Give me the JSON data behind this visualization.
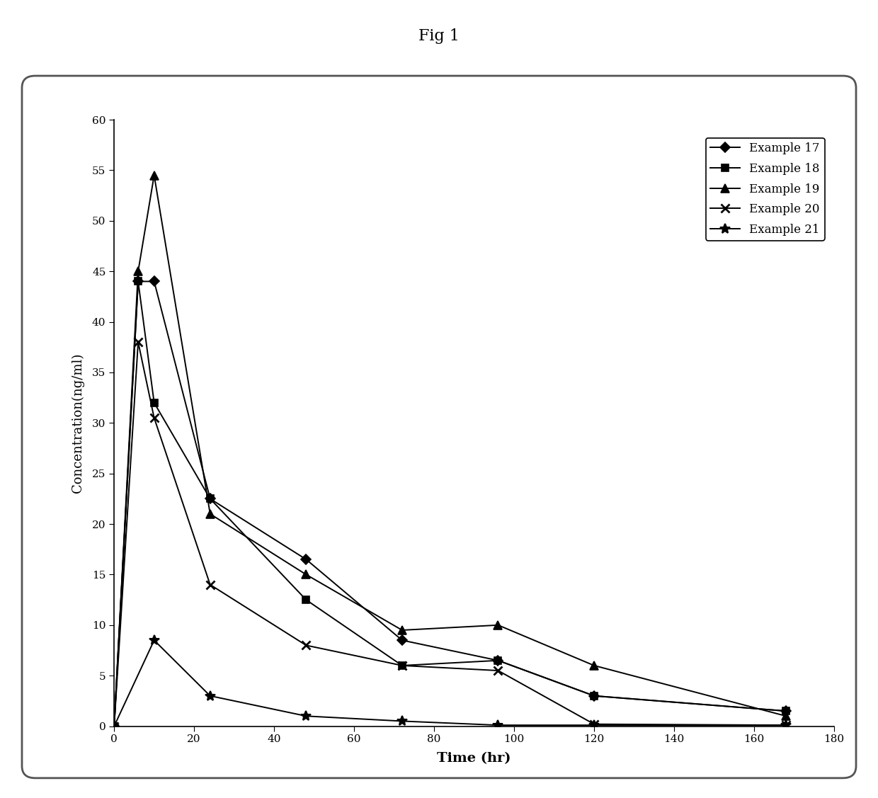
{
  "title": "Fig 1",
  "xlabel": "Time (hr)",
  "ylabel": "Concentration(ng/ml)",
  "xlim": [
    0,
    180
  ],
  "ylim": [
    0,
    60
  ],
  "xticks": [
    0,
    20,
    40,
    60,
    80,
    100,
    120,
    140,
    160,
    180
  ],
  "yticks": [
    0,
    5,
    10,
    15,
    20,
    25,
    30,
    35,
    40,
    45,
    50,
    55,
    60
  ],
  "series": [
    {
      "label": "Example 17",
      "marker": "D",
      "color": "#000000",
      "x": [
        0,
        6,
        10,
        24,
        48,
        72,
        96,
        120,
        168
      ],
      "y": [
        0,
        44,
        44,
        22.5,
        16.5,
        8.5,
        6.5,
        3.0,
        1.5
      ]
    },
    {
      "label": "Example 18",
      "marker": "s",
      "color": "#000000",
      "x": [
        0,
        6,
        10,
        24,
        48,
        72,
        96,
        120,
        168
      ],
      "y": [
        0,
        44,
        32,
        22.5,
        12.5,
        6.0,
        6.5,
        3.0,
        1.5
      ]
    },
    {
      "label": "Example 19",
      "marker": "^",
      "color": "#000000",
      "x": [
        0,
        6,
        10,
        24,
        48,
        72,
        96,
        120,
        168
      ],
      "y": [
        0,
        45,
        54.5,
        21.0,
        15.0,
        9.5,
        10.0,
        6.0,
        1.0
      ]
    },
    {
      "label": "Example 20",
      "marker": "x",
      "color": "#000000",
      "x": [
        0,
        6,
        10,
        24,
        48,
        72,
        96,
        120,
        168
      ],
      "y": [
        0,
        38,
        30.5,
        14.0,
        8.0,
        6.0,
        5.5,
        0.2,
        0.1
      ]
    },
    {
      "label": "Example 21",
      "marker": "*",
      "color": "#000000",
      "x": [
        0,
        10,
        24,
        48,
        72,
        96,
        120,
        168
      ],
      "y": [
        0,
        8.5,
        3.0,
        1.0,
        0.5,
        0.1,
        0.1,
        0.1
      ]
    }
  ],
  "background_color": "#ffffff",
  "figure_background": "#ffffff"
}
